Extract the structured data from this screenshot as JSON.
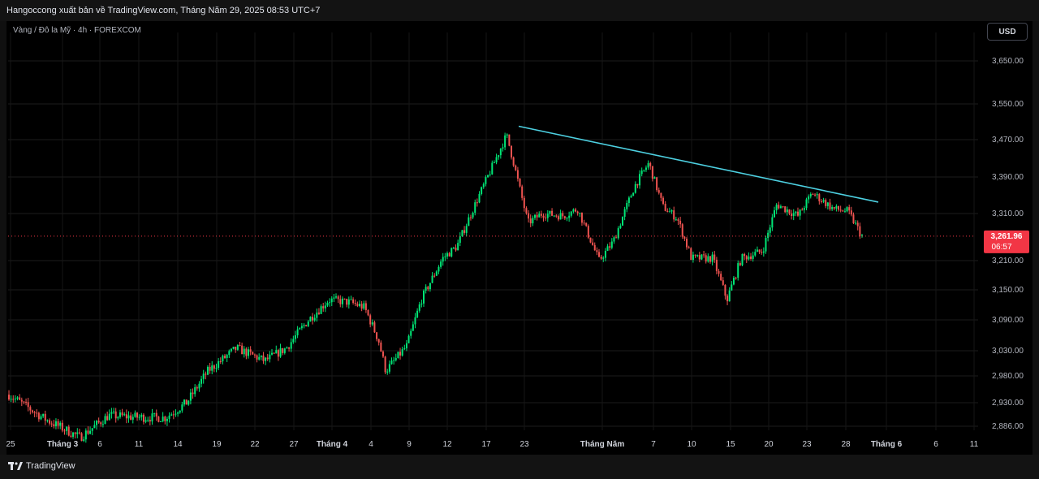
{
  "header": {
    "publisher_line": "Hangoccong xuất bản về TradingView.com, Tháng Năm 29, 2025 08:53 UTC+7"
  },
  "legend": {
    "symbol": "Vàng / Đô la Mỹ · 4h · FOREXCOM"
  },
  "toolbar": {
    "currency_label": "USD"
  },
  "footer": {
    "brand": "TradingView"
  },
  "colors": {
    "up": "#26a69a",
    "up_candle": "#00e676",
    "down": "#ef5350",
    "trendline": "#4dd0e1",
    "price_line": "#f23645"
  },
  "chart_data": {
    "type": "candlestick",
    "title": "",
    "symbol": "Vàng / Đô la Mỹ",
    "interval": "4h",
    "exchange": "FOREXCOM",
    "currency": "USD",
    "y_ticks": [
      "3,650.00",
      "3,550.00",
      "3,470.00",
      "3,390.00",
      "3,310.00",
      "3,210.00",
      "3,150.00",
      "3,090.00",
      "3,030.00",
      "2,980.00",
      "2,930.00",
      "2,886.00"
    ],
    "x_ticks": [
      "25",
      "Tháng 3",
      "6",
      "11",
      "14",
      "19",
      "22",
      "27",
      "Tháng 4",
      "4",
      "9",
      "12",
      "17",
      "23",
      "Tháng Năm",
      "7",
      "10",
      "15",
      "20",
      "23",
      "28",
      "Tháng 6",
      "6",
      "11"
    ],
    "current_price": "3,261.96",
    "countdown": "06:57",
    "trendline": {
      "from": {
        "date": "Apr 22",
        "price": 3500
      },
      "to": {
        "date": "May 30",
        "price": 3335
      }
    },
    "grid": true,
    "close_path": [
      [
        0,
        2945
      ],
      [
        5,
        2900
      ],
      [
        10,
        2865
      ],
      [
        14,
        2906
      ],
      [
        18,
        2903
      ],
      [
        22,
        2902
      ],
      [
        25,
        2930
      ],
      [
        28,
        2990
      ],
      [
        32,
        3035
      ],
      [
        36,
        3010
      ],
      [
        39,
        3035
      ],
      [
        42,
        3088
      ],
      [
        45,
        3130
      ],
      [
        48,
        3125
      ],
      [
        50,
        3115
      ],
      [
        52,
        3050
      ],
      [
        53,
        2990
      ],
      [
        56,
        3040
      ],
      [
        58,
        3130
      ],
      [
        61,
        3215
      ],
      [
        63,
        3240
      ],
      [
        66,
        3345
      ],
      [
        70,
        3480
      ],
      [
        71,
        3420
      ],
      [
        73,
        3290
      ],
      [
        75,
        3310
      ],
      [
        78,
        3305
      ],
      [
        80,
        3320
      ],
      [
        83,
        3210
      ],
      [
        85,
        3250
      ],
      [
        88,
        3370
      ],
      [
        90,
        3420
      ],
      [
        92,
        3325
      ],
      [
        94,
        3300
      ],
      [
        96,
        3215
      ],
      [
        99,
        3215
      ],
      [
        101,
        3130
      ],
      [
        103,
        3215
      ],
      [
        106,
        3230
      ],
      [
        108,
        3330
      ],
      [
        111,
        3305
      ],
      [
        113,
        3355
      ],
      [
        116,
        3320
      ],
      [
        118,
        3315
      ],
      [
        120,
        3262
      ]
    ]
  }
}
